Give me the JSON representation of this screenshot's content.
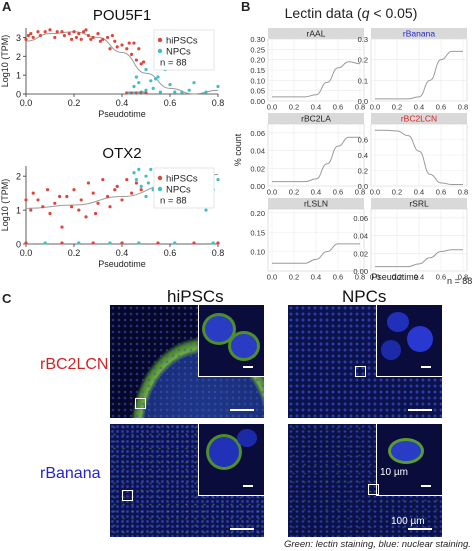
{
  "figure": {
    "caption": "Green: lectin staining, blue: nuclear staining.",
    "colors": {
      "hipsc": "#e0453a",
      "npc": "#3cbfcb",
      "curve": "#9a9a9a",
      "strip_bg": "#d9d9d9",
      "grid": "#ebebeb",
      "rbanana": "#2525cf",
      "rbc2lcn": "#d22424",
      "stain_green": "#7bc043",
      "stain_blue": "#1c2ca8"
    }
  },
  "panelA": {
    "label": "A",
    "legend": {
      "hipsc": "hiPSCs",
      "npc": "NPCs",
      "n": "n = 88"
    }
  },
  "panelB": {
    "label": "B",
    "title_prefix": "Lectin data (",
    "title_q": "q",
    "title_suffix": " < 0.05)",
    "ylabel": "% count",
    "xlabel": "Pseudotime",
    "n": "n = 88"
  },
  "panelC": {
    "label": "C",
    "col_hipsc": "hiPSCs",
    "col_npc": "NPCs",
    "row_rbc2lcn": "rBC2LCN",
    "row_rbanana": "rBanana",
    "scale_small": "10 µm",
    "scale_large": "100 µm"
  },
  "chart_data": [
    {
      "type": "scatter",
      "title": "POU5F1",
      "xlabel": "Pseudotime",
      "ylabel": "Log10 (TPM)",
      "xlim": [
        0,
        0.8
      ],
      "ylim": [
        0,
        3.5
      ],
      "xticks": [
        "0.0",
        "0.2",
        "0.4",
        "0.6",
        "0.8"
      ],
      "yticks": [
        "0",
        "1",
        "2",
        "3"
      ],
      "legend_position": "right",
      "series": [
        {
          "name": "hiPSCs",
          "x": [
            0.0,
            0.01,
            0.02,
            0.03,
            0.05,
            0.06,
            0.08,
            0.1,
            0.12,
            0.13,
            0.15,
            0.16,
            0.18,
            0.19,
            0.2,
            0.21,
            0.22,
            0.23,
            0.24,
            0.25,
            0.26,
            0.27,
            0.28,
            0.3,
            0.31,
            0.32,
            0.34,
            0.35,
            0.37,
            0.38,
            0.4,
            0.42,
            0.44,
            0.45,
            0.46,
            0.47,
            0.48,
            0.49,
            0.43,
            0.36
          ],
          "y": [
            2.9,
            3.1,
            3.2,
            3.0,
            3.3,
            3.1,
            3.3,
            3.4,
            3.0,
            3.3,
            3.3,
            3.1,
            3.2,
            2.9,
            3.3,
            3.0,
            3.2,
            2.9,
            3.3,
            3.4,
            3.1,
            2.9,
            3.0,
            3.2,
            2.8,
            2.9,
            3.0,
            2.4,
            2.8,
            2.5,
            2.6,
            2.4,
            2.1,
            2.7,
            1.8,
            2.4,
            1.6,
            1.7,
            2.7,
            3.1
          ]
        },
        {
          "name": "NPCs",
          "x": [
            0.45,
            0.46,
            0.47,
            0.48,
            0.5,
            0.52,
            0.53,
            0.55,
            0.56,
            0.58,
            0.6,
            0.62,
            0.65,
            0.68,
            0.7,
            0.75,
            0.8,
            0.5,
            0.54
          ],
          "y": [
            0.4,
            0.9,
            0.6,
            0.1,
            0.2,
            0.7,
            0.3,
            0.9,
            0.1,
            1.3,
            0.5,
            0.1,
            0.1,
            0.2,
            0.6,
            0.1,
            0.4,
            1.3,
            0.8
          ]
        }
      ],
      "baseline_points_x": [
        0.42,
        0.43,
        0.44,
        0.45,
        0.46,
        0.47,
        0.48,
        0.49,
        0.5
      ],
      "trend": {
        "x": [
          0.0,
          0.1,
          0.2,
          0.3,
          0.4,
          0.5,
          0.6,
          0.7,
          0.8
        ],
        "y": [
          2.8,
          3.2,
          3.3,
          3.0,
          2.2,
          1.1,
          0.3,
          0.0,
          0.2
        ]
      }
    },
    {
      "type": "scatter",
      "title": "OTX2",
      "xlabel": "Pseudotime",
      "ylabel": "Log10 (TPM)",
      "xlim": [
        0,
        0.8
      ],
      "ylim": [
        0,
        2.3
      ],
      "xticks": [
        "0.0",
        "0.2",
        "0.4",
        "0.6",
        "0.8"
      ],
      "yticks": [
        "0",
        "1",
        "2"
      ],
      "legend_position": "right",
      "series": [
        {
          "name": "hiPSCs",
          "x": [
            0.0,
            0.02,
            0.03,
            0.05,
            0.07,
            0.09,
            0.1,
            0.12,
            0.14,
            0.15,
            0.17,
            0.19,
            0.2,
            0.22,
            0.23,
            0.25,
            0.26,
            0.28,
            0.29,
            0.3,
            0.32,
            0.34,
            0.35,
            0.37,
            0.38,
            0.4,
            0.42,
            0.44,
            0.46,
            0.48
          ],
          "y": [
            1.3,
            1.0,
            1.5,
            1.3,
            1.1,
            1.6,
            0.9,
            1.2,
            1.4,
            0.5,
            1.4,
            1.1,
            1.6,
            1.0,
            1.3,
            0.8,
            1.8,
            1.5,
            0.9,
            1.2,
            1.9,
            1.4,
            1.1,
            1.6,
            1.7,
            1.3,
            1.9,
            1.5,
            1.8,
            1.6
          ]
        },
        {
          "name": "NPCs",
          "x": [
            0.45,
            0.46,
            0.47,
            0.48,
            0.5,
            0.51,
            0.52,
            0.53,
            0.55,
            0.56,
            0.58,
            0.6,
            0.62,
            0.65,
            0.68,
            0.7,
            0.72,
            0.75,
            0.78,
            0.8,
            0.5,
            0.54
          ],
          "y": [
            2.1,
            1.9,
            2.2,
            1.7,
            2.0,
            1.8,
            2.2,
            1.6,
            1.9,
            1.5,
            1.7,
            1.4,
            1.2,
            1.8,
            1.3,
            1.5,
            1.1,
            1.0,
            1.6,
            1.9,
            1.4,
            2.1
          ]
        }
      ],
      "baseline_points_x": [
        0.0,
        0.08,
        0.15,
        0.22,
        0.28,
        0.35,
        0.4,
        0.47,
        0.55,
        0.62,
        0.7,
        0.78,
        0.8
      ],
      "trend": {
        "x": [
          0.0,
          0.2,
          0.4,
          0.6,
          0.8
        ],
        "y": [
          1.05,
          1.15,
          1.4,
          1.75,
          2.05
        ]
      }
    },
    {
      "type": "line",
      "title": "Lectin data (q < 0.05)",
      "xlabel": "Pseudotime",
      "ylabel": "% count",
      "grid": true,
      "xticks": [
        "0.0",
        "0.2",
        "0.4",
        "0.6",
        "0.8"
      ],
      "panels": [
        {
          "name": "rAAL",
          "ylim": [
            0,
            0.3
          ],
          "yticks": [
            "0.00",
            "0.05",
            "0.10",
            "0.15",
            "0.20",
            "0.25",
            "0.30"
          ],
          "x": [
            0.0,
            0.1,
            0.2,
            0.3,
            0.4,
            0.5,
            0.6,
            0.7,
            0.8
          ],
          "y": [
            0.02,
            0.02,
            0.02,
            0.02,
            0.03,
            0.09,
            0.16,
            0.19,
            0.18
          ]
        },
        {
          "name": "rBanana",
          "ylim": [
            0,
            0.3
          ],
          "yticks": [
            "0.0",
            "0.1",
            "0.2",
            "0.3"
          ],
          "x": [
            0.0,
            0.1,
            0.2,
            0.3,
            0.4,
            0.5,
            0.6,
            0.7,
            0.8
          ],
          "y": [
            0.01,
            0.01,
            0.01,
            0.01,
            0.02,
            0.1,
            0.2,
            0.24,
            0.24
          ]
        },
        {
          "name": "rBC2LA",
          "ylim": [
            0,
            0.07
          ],
          "yticks": [
            "0.00",
            "0.02",
            "0.04",
            "0.06"
          ],
          "x": [
            0.0,
            0.1,
            0.2,
            0.3,
            0.4,
            0.5,
            0.6,
            0.7,
            0.8
          ],
          "y": [
            0.005,
            0.005,
            0.005,
            0.005,
            0.008,
            0.025,
            0.045,
            0.055,
            0.055
          ]
        },
        {
          "name": "rBC2LCN",
          "ylim": [
            0,
            0.8
          ],
          "yticks": [
            "0.0",
            "0.2",
            "0.4",
            "0.6"
          ],
          "x": [
            0.0,
            0.1,
            0.2,
            0.3,
            0.4,
            0.5,
            0.6,
            0.7,
            0.8
          ],
          "y": [
            0.72,
            0.72,
            0.71,
            0.65,
            0.45,
            0.15,
            0.04,
            0.02,
            0.02
          ]
        },
        {
          "name": "rLSLN",
          "ylim": [
            0.05,
            0.21
          ],
          "yticks": [
            "0.10",
            "0.15",
            "0.20"
          ],
          "x": [
            0.0,
            0.1,
            0.2,
            0.3,
            0.4,
            0.5,
            0.6,
            0.7,
            0.8
          ],
          "y": [
            0.07,
            0.07,
            0.07,
            0.07,
            0.08,
            0.1,
            0.12,
            0.12,
            0.12
          ]
        },
        {
          "name": "rSRL",
          "ylim": [
            0,
            0.07
          ],
          "yticks": [
            "0.00",
            "0.02",
            "0.04",
            "0.06"
          ],
          "x": [
            0.0,
            0.1,
            0.2,
            0.3,
            0.4,
            0.5,
            0.6,
            0.7,
            0.8
          ],
          "y": [
            0.005,
            0.005,
            0.005,
            0.005,
            0.008,
            0.015,
            0.022,
            0.024,
            0.024
          ]
        }
      ]
    }
  ]
}
